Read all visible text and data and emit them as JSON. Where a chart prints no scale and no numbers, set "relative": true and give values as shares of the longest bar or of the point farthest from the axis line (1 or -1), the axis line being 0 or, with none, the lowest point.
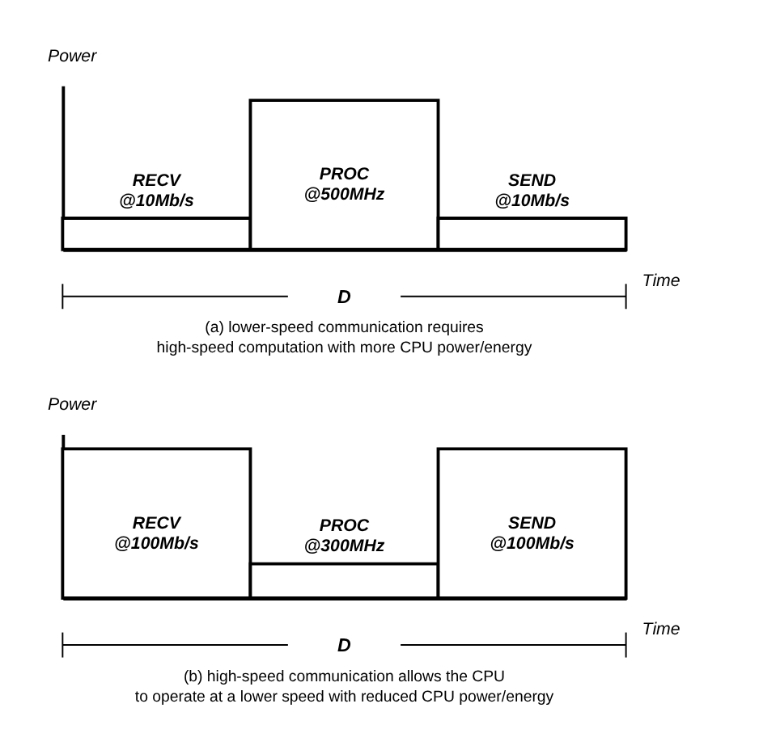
{
  "chart_data": [
    {
      "type": "bar",
      "relative": true,
      "categories": [
        "RECV @10Mb/s",
        "PROC @500MHz",
        "SEND @10Mb/s"
      ],
      "values": [
        0.21,
        1,
        0.21
      ],
      "color": "#ffffff",
      "xlabel": "Time",
      "ylabel": "Power",
      "annotations": [
        "D",
        "(a) lower-speed communication requires",
        "high-speed computation with more CPU power/energy"
      ],
      "grid": false
    },
    {
      "type": "bar",
      "relative": true,
      "categories": [
        "RECV @100Mb/s",
        "PROC @300MHz",
        "SEND @100Mb/s"
      ],
      "values": [
        1,
        0.23,
        1
      ],
      "color": "#ffffff",
      "xlabel": "Time",
      "ylabel": "Power",
      "annotations": [
        "D",
        "(b) high-speed communication allows the CPU",
        "to operate at a lower speed with reduced CPU power/energy"
      ],
      "grid": false
    }
  ]
}
